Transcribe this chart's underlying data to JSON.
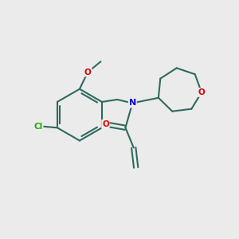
{
  "bg_color": "#ebebeb",
  "bond_color": "#2d6b5e",
  "bond_width": 1.5,
  "atom_colors": {
    "N": "#0000cc",
    "O": "#dd0000",
    "Cl": "#22aa00",
    "C": "#000000"
  }
}
